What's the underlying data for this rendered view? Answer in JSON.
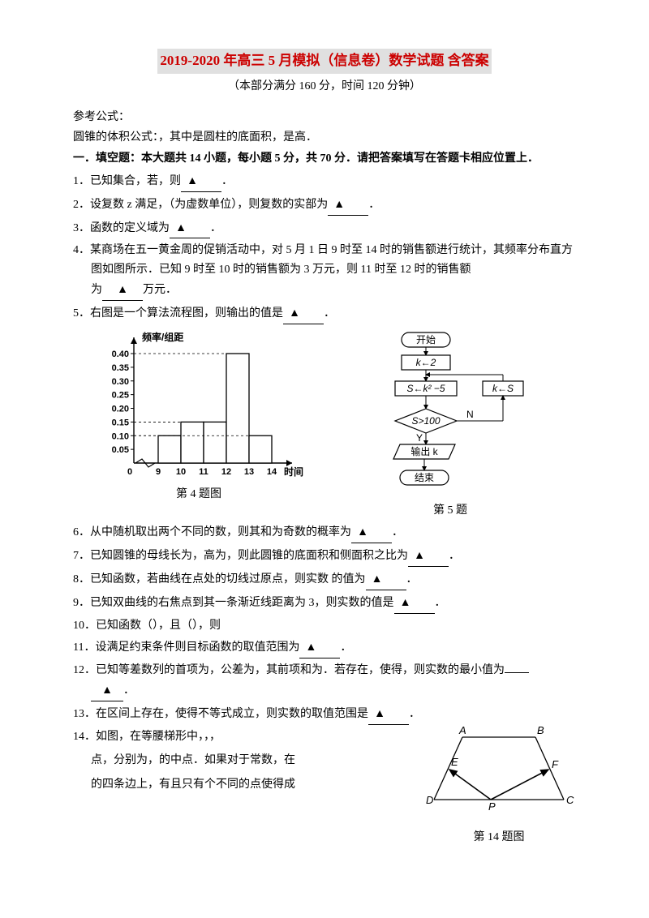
{
  "title": "2019-2020 年高三 5 月模拟（信息卷）数学试题 含答案",
  "subtitle": "（本部分满分 160 分，时间 120 分钟）",
  "ref_heading": "参考公式：",
  "ref_text": "圆锥的体积公式：，其中是圆柱的底面积，是高．",
  "section1": "一．填空题：本大题共 14 小题，每小题 5 分，共 70 分．请把答案填写在答题卡相应位置上．",
  "q1": {
    "num": "1．",
    "text_a": "已知集合，若，则",
    "text_b": "．"
  },
  "q2": {
    "num": "2．",
    "text_a": "设复数 z 满足，（为虚数单位），则复数的实部为",
    "text_b": "．"
  },
  "q3": {
    "num": "3．",
    "text_a": "函数的定义域为",
    "text_b": "．"
  },
  "q4": {
    "num": "4．",
    "line1": "某商场在五一黄金周的促销活动中，对 5 月 1 日 9 时至 14 时的销售额进行统计，其频率分布直方图如图所示．已知 9 时至 10 时的销售额为 3 万元，则 11 时至 12 时的销售额",
    "line2_a": "为",
    "line2_b": "万元．"
  },
  "q5": {
    "num": "5．",
    "text_a": "右图是一个算法流程图，则输出的值是",
    "text_b": "．"
  },
  "histogram": {
    "y_axis_label": "频率/组距",
    "x_axis_label": "时间",
    "y_ticks": [
      "0.40",
      "0.35",
      "0.30",
      "0.25",
      "0.20",
      "0.15",
      "0.10",
      "0.05"
    ],
    "x_ticks": [
      "0",
      "9",
      "10",
      "11",
      "12",
      "13",
      "14"
    ],
    "bars": [
      {
        "x": 0,
        "h": 0.1
      },
      {
        "x": 1,
        "h": 0.15
      },
      {
        "x": 2,
        "h": 0.15
      },
      {
        "x": 3,
        "h": 0.4
      },
      {
        "x": 4,
        "h": 0.1
      }
    ],
    "fig_label": "第 4 题图"
  },
  "flowchart": {
    "start": "开始",
    "s1": "k←2",
    "s2": "S←k² −5",
    "s3": "k←S",
    "cond": "S>100",
    "yes": "Y",
    "no": "N",
    "out": "输出 k",
    "end": "结束",
    "fig_label": "第 5 题"
  },
  "q6": {
    "num": "6．",
    "text_a": "从中随机取出两个不同的数，则其和为奇数的概率为",
    "text_b": "．"
  },
  "q7": {
    "num": "7．",
    "text_a": "已知圆锥的母线长为，高为，则此圆锥的底面积和侧面积之比为",
    "text_b": "．"
  },
  "q8": {
    "num": "8．",
    "text_a": "已知函数，若曲线在点处的切线过原点，则实数 的值为",
    "text_b": "．"
  },
  "q9": {
    "num": "9．",
    "text_a": "已知双曲线的右焦点到其一条渐近线距离为 3，则实数的值是",
    "text_b": "．"
  },
  "q10": {
    "num": "10．",
    "line1": "已知函数（），且（），则"
  },
  "q11": {
    "num": "11．",
    "text_a": "设满足约束条件则目标函数的取值范围为",
    "text_b": "．"
  },
  "q12": {
    "num": "12．",
    "text_a": "已知等差数列的首项为，公差为，其前项和为．若存在，使得，则实数的最小值为",
    "text_b": "．"
  },
  "q13": {
    "num": "13．",
    "text_a": "在区间上存在，使得不等式成立，则实数的取值范围是",
    "text_b": "．"
  },
  "q14": {
    "num": "14．",
    "line1": "如图，在等腰梯形中，，，",
    "line2": "点，分别为，的中点．如果对于常数，在",
    "line3": "的四条边上，有且只有个不同的点使得成"
  },
  "trapezoid": {
    "A": "A",
    "B": "B",
    "C": "C",
    "D": "D",
    "E": "E",
    "F": "F",
    "P": "P",
    "fig_label": "第 14 题图"
  },
  "blank_mark": "▲"
}
